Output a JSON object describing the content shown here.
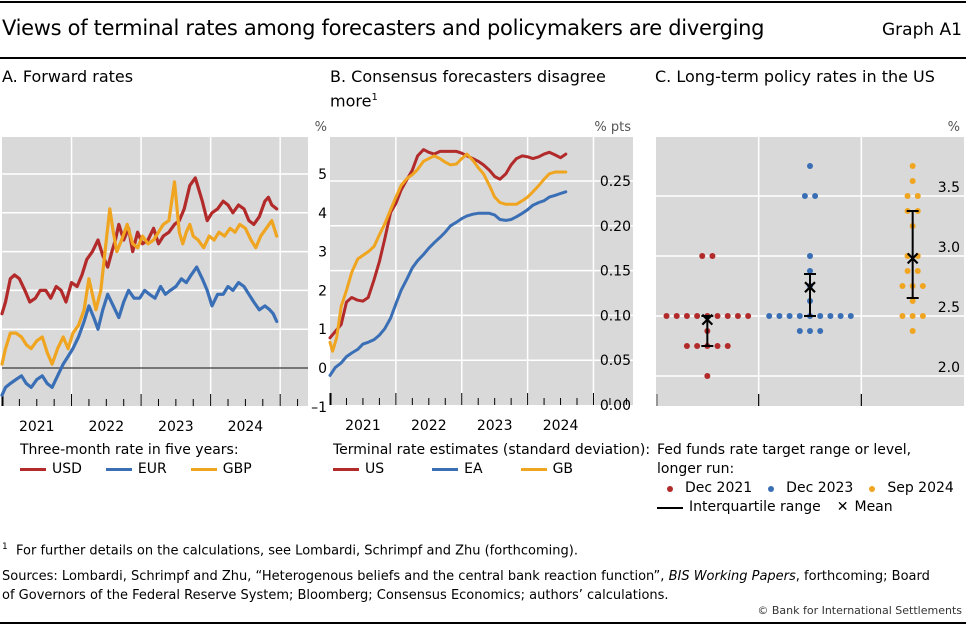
{
  "header": {
    "title": "Views of terminal rates among forecasters and policymakers are diverging",
    "graph_id": "Graph A1"
  },
  "colors": {
    "red": "#b22a2a",
    "blue": "#3a6fb5",
    "orange": "#f0a520",
    "plot_bg": "#d9d9d9",
    "grid": "#ffffff",
    "zero_line": "#555555"
  },
  "panels": {
    "a": {
      "title": "A. Forward rates",
      "unit": "%",
      "legend_title": "Three-month rate in five years:",
      "legend": [
        "USD",
        "EUR",
        "GBP"
      ]
    },
    "b": {
      "title_line1": "B. Consensus forecasters disagree",
      "title_line2": "more",
      "title_sup": "1",
      "unit": "% pts",
      "legend_title": "Terminal rate estimates (standard deviation):",
      "legend": [
        "US",
        "EA",
        "GB"
      ]
    },
    "c": {
      "title": "C. Long-term policy rates in the US",
      "unit": "%",
      "legend_title_line1": "Fed funds rate target range or level,",
      "legend_title_line2": "longer run:",
      "legend": [
        "Dec 2021",
        "Dec 2023",
        "Sep 2024"
      ],
      "legend_iqr": "Interquartile range",
      "legend_mean": "Mean",
      "mean_symbol": "✕"
    }
  },
  "footnotes": {
    "note_marker": "1",
    "note": "For further details on the calculations, see Lombardi, Schrimpf and Zhu (forthcoming).",
    "sources_pre": "Sources: Lombardi, Schrimpf and Zhu, “Heterogenous beliefs and the central bank reaction function”, ",
    "sources_italic": "BIS Working Papers",
    "sources_post": ", forthcoming; Board",
    "sources_line2": "of Governors of the Federal Reserve System; Bloomberg; Consensus Economics; authors’ calculations.",
    "copyright": "© Bank for International Settlements"
  },
  "chart_data": [
    {
      "id": "a",
      "type": "line",
      "title": "A. Forward rates",
      "xlabel": "",
      "ylabel": "%",
      "xlim": [
        2021.0,
        2025.4
      ],
      "ylim": [
        -1.0,
        6.0
      ],
      "xticks": [
        2021,
        2022,
        2023,
        2024
      ],
      "xtick_labels": [
        "2021",
        "2022",
        "2023",
        "2024"
      ],
      "yticks": [
        -1,
        0,
        1,
        2,
        3,
        4,
        5
      ],
      "ytick_labels": [
        "–1",
        "0",
        "1",
        "2",
        "3",
        "4",
        "5"
      ],
      "grid": true,
      "legend_position": "bottom",
      "series": [
        {
          "name": "USD",
          "color": "#b22a2a",
          "x": [
            2021.0,
            2021.05,
            2021.12,
            2021.18,
            2021.25,
            2021.33,
            2021.4,
            2021.48,
            2021.55,
            2021.63,
            2021.7,
            2021.78,
            2021.85,
            2021.92,
            2022.0,
            2022.08,
            2022.15,
            2022.22,
            2022.3,
            2022.38,
            2022.45,
            2022.52,
            2022.58,
            2022.63,
            2022.68,
            2022.75,
            2022.82,
            2022.88,
            2022.95,
            2023.02,
            2023.1,
            2023.18,
            2023.25,
            2023.32,
            2023.4,
            2023.48,
            2023.55,
            2023.62,
            2023.7,
            2023.78,
            2023.83,
            2023.88,
            2023.95,
            2024.02,
            2024.1,
            2024.18,
            2024.25,
            2024.32,
            2024.4,
            2024.48,
            2024.55,
            2024.62,
            2024.7,
            2024.78,
            2024.83,
            2024.88,
            2024.95
          ],
          "values": [
            1.4,
            1.7,
            2.3,
            2.4,
            2.3,
            2.0,
            1.7,
            1.8,
            2.0,
            2.0,
            1.8,
            2.1,
            2.0,
            1.7,
            2.2,
            2.1,
            2.4,
            2.8,
            3.0,
            3.3,
            2.9,
            2.6,
            3.0,
            3.3,
            3.7,
            3.3,
            3.6,
            3.0,
            3.5,
            3.2,
            3.3,
            3.6,
            3.2,
            3.4,
            3.5,
            3.7,
            3.8,
            4.1,
            4.7,
            4.9,
            4.6,
            4.3,
            3.8,
            4.0,
            4.1,
            4.3,
            4.2,
            4.0,
            4.2,
            4.1,
            3.8,
            3.7,
            3.9,
            4.3,
            4.4,
            4.2,
            4.1
          ]
        },
        {
          "name": "EUR",
          "color": "#3a6fb5",
          "x": [
            2021.0,
            2021.05,
            2021.12,
            2021.2,
            2021.28,
            2021.35,
            2021.42,
            2021.5,
            2021.58,
            2021.65,
            2021.72,
            2021.8,
            2021.88,
            2021.95,
            2022.02,
            2022.1,
            2022.18,
            2022.25,
            2022.32,
            2022.38,
            2022.45,
            2022.52,
            2022.6,
            2022.68,
            2022.75,
            2022.82,
            2022.9,
            2022.98,
            2023.05,
            2023.12,
            2023.2,
            2023.28,
            2023.35,
            2023.42,
            2023.5,
            2023.58,
            2023.65,
            2023.72,
            2023.8,
            2023.88,
            2023.95,
            2024.02,
            2024.1,
            2024.18,
            2024.25,
            2024.32,
            2024.4,
            2024.48,
            2024.55,
            2024.62,
            2024.7,
            2024.78,
            2024.85,
            2024.9,
            2024.95
          ],
          "values": [
            -0.7,
            -0.5,
            -0.4,
            -0.3,
            -0.2,
            -0.4,
            -0.5,
            -0.3,
            -0.2,
            -0.4,
            -0.5,
            -0.2,
            0.1,
            0.3,
            0.5,
            0.8,
            1.2,
            1.6,
            1.3,
            1.0,
            1.5,
            1.9,
            1.6,
            1.3,
            1.7,
            2.0,
            1.8,
            1.8,
            2.0,
            1.9,
            1.8,
            2.1,
            1.9,
            2.0,
            2.1,
            2.3,
            2.2,
            2.4,
            2.6,
            2.3,
            2.0,
            1.6,
            1.9,
            1.9,
            2.1,
            2.0,
            2.2,
            2.1,
            1.9,
            1.7,
            1.5,
            1.6,
            1.5,
            1.4,
            1.2
          ]
        },
        {
          "name": "GBP",
          "color": "#f0a520",
          "x": [
            2021.0,
            2021.05,
            2021.12,
            2021.2,
            2021.28,
            2021.35,
            2021.42,
            2021.5,
            2021.58,
            2021.65,
            2021.72,
            2021.8,
            2021.88,
            2021.95,
            2022.02,
            2022.1,
            2022.18,
            2022.25,
            2022.3,
            2022.35,
            2022.42,
            2022.5,
            2022.55,
            2022.6,
            2022.65,
            2022.72,
            2022.8,
            2022.88,
            2022.95,
            2023.02,
            2023.1,
            2023.18,
            2023.25,
            2023.32,
            2023.4,
            2023.48,
            2023.55,
            2023.6,
            2023.65,
            2023.7,
            2023.75,
            2023.82,
            2023.9,
            2023.98,
            2024.05,
            2024.12,
            2024.2,
            2024.28,
            2024.35,
            2024.42,
            2024.5,
            2024.58,
            2024.65,
            2024.72,
            2024.8,
            2024.88,
            2024.95
          ],
          "values": [
            0.1,
            0.5,
            0.9,
            0.9,
            0.8,
            0.6,
            0.5,
            0.7,
            0.8,
            0.4,
            0.1,
            0.5,
            0.8,
            0.5,
            0.9,
            1.1,
            1.5,
            2.3,
            1.9,
            1.5,
            2.0,
            3.3,
            4.1,
            3.5,
            3.0,
            3.3,
            3.7,
            3.2,
            3.1,
            3.4,
            3.2,
            3.3,
            3.5,
            3.7,
            3.8,
            4.8,
            3.5,
            3.2,
            3.5,
            3.7,
            3.4,
            3.3,
            3.1,
            3.4,
            3.3,
            3.5,
            3.4,
            3.6,
            3.5,
            3.7,
            3.6,
            3.3,
            3.1,
            3.4,
            3.6,
            3.8,
            3.4
          ]
        }
      ]
    },
    {
      "id": "b",
      "type": "line",
      "title": "B. Consensus forecasters disagree more",
      "xlabel": "",
      "ylabel": "% pts",
      "xlim": [
        2021.0,
        2025.6
      ],
      "ylim": [
        0.0,
        0.3
      ],
      "xticks": [
        2021,
        2022,
        2023,
        2024
      ],
      "xtick_labels": [
        "2021",
        "2022",
        "2023",
        "2024"
      ],
      "yticks": [
        0.0,
        0.05,
        0.1,
        0.15,
        0.2,
        0.25
      ],
      "ytick_labels": [
        "0.00",
        "0.05",
        "0.10",
        "0.15",
        "0.20",
        "0.25"
      ],
      "grid": true,
      "legend_position": "bottom",
      "series": [
        {
          "name": "US",
          "color": "#b22a2a",
          "x": [
            2021.0,
            2021.08,
            2021.17,
            2021.25,
            2021.33,
            2021.42,
            2021.5,
            2021.58,
            2021.67,
            2021.75,
            2021.83,
            2021.92,
            2022.0,
            2022.08,
            2022.17,
            2022.25,
            2022.33,
            2022.42,
            2022.5,
            2022.58,
            2022.67,
            2022.75,
            2022.83,
            2022.92,
            2023.0,
            2023.08,
            2023.17,
            2023.25,
            2023.33,
            2023.42,
            2023.5,
            2023.58,
            2023.67,
            2023.75,
            2023.83,
            2023.92,
            2024.0,
            2024.08,
            2024.17,
            2024.25,
            2024.33,
            2024.42,
            2024.5,
            2024.58
          ],
          "values": [
            0.075,
            0.082,
            0.09,
            0.115,
            0.12,
            0.117,
            0.116,
            0.12,
            0.14,
            0.16,
            0.185,
            0.215,
            0.225,
            0.24,
            0.252,
            0.262,
            0.278,
            0.285,
            0.282,
            0.28,
            0.283,
            0.283,
            0.283,
            0.283,
            0.281,
            0.278,
            0.275,
            0.272,
            0.268,
            0.262,
            0.255,
            0.252,
            0.258,
            0.268,
            0.275,
            0.278,
            0.277,
            0.275,
            0.277,
            0.28,
            0.282,
            0.279,
            0.276,
            0.28
          ]
        },
        {
          "name": "EA",
          "color": "#3a6fb5",
          "x": [
            2021.0,
            2021.08,
            2021.17,
            2021.25,
            2021.33,
            2021.42,
            2021.5,
            2021.58,
            2021.67,
            2021.75,
            2021.83,
            2021.92,
            2022.0,
            2022.08,
            2022.17,
            2022.25,
            2022.33,
            2022.42,
            2022.5,
            2022.58,
            2022.67,
            2022.75,
            2022.83,
            2022.92,
            2023.0,
            2023.08,
            2023.17,
            2023.25,
            2023.33,
            2023.42,
            2023.5,
            2023.58,
            2023.67,
            2023.75,
            2023.83,
            2023.92,
            2024.0,
            2024.08,
            2024.17,
            2024.25,
            2024.33,
            2024.42,
            2024.5,
            2024.58
          ],
          "values": [
            0.033,
            0.042,
            0.047,
            0.054,
            0.058,
            0.062,
            0.068,
            0.07,
            0.073,
            0.078,
            0.085,
            0.097,
            0.113,
            0.128,
            0.141,
            0.153,
            0.161,
            0.168,
            0.175,
            0.181,
            0.187,
            0.193,
            0.2,
            0.204,
            0.208,
            0.211,
            0.213,
            0.214,
            0.214,
            0.214,
            0.212,
            0.207,
            0.206,
            0.207,
            0.21,
            0.214,
            0.218,
            0.223,
            0.226,
            0.228,
            0.232,
            0.234,
            0.236,
            0.238
          ]
        },
        {
          "name": "GB",
          "color": "#f0a520",
          "x": [
            2021.0,
            2021.04,
            2021.1,
            2021.17,
            2021.25,
            2021.33,
            2021.42,
            2021.5,
            2021.58,
            2021.67,
            2021.75,
            2021.83,
            2021.92,
            2022.0,
            2022.08,
            2022.17,
            2022.25,
            2022.33,
            2022.42,
            2022.5,
            2022.58,
            2022.67,
            2022.75,
            2022.83,
            2022.92,
            2023.0,
            2023.08,
            2023.17,
            2023.25,
            2023.33,
            2023.42,
            2023.5,
            2023.58,
            2023.67,
            2023.75,
            2023.83,
            2023.92,
            2024.0,
            2024.08,
            2024.17,
            2024.25,
            2024.33,
            2024.42,
            2024.5,
            2024.58
          ],
          "values": [
            0.07,
            0.06,
            0.075,
            0.11,
            0.128,
            0.148,
            0.163,
            0.167,
            0.171,
            0.177,
            0.19,
            0.202,
            0.218,
            0.232,
            0.245,
            0.253,
            0.257,
            0.263,
            0.272,
            0.275,
            0.278,
            0.275,
            0.271,
            0.268,
            0.269,
            0.275,
            0.28,
            0.273,
            0.265,
            0.258,
            0.245,
            0.232,
            0.226,
            0.224,
            0.224,
            0.224,
            0.228,
            0.232,
            0.238,
            0.245,
            0.252,
            0.258,
            0.26,
            0.26,
            0.26
          ]
        }
      ]
    },
    {
      "id": "c",
      "type": "scatter",
      "title": "C. Long-term policy rates in the US",
      "xlabel": "",
      "ylabel": "%",
      "ylim": [
        1.85,
        3.95
      ],
      "yticks": [
        2.0,
        2.5,
        3.0,
        3.5
      ],
      "ytick_labels": [
        "2.0",
        "2.5",
        "3.0",
        "3.5"
      ],
      "grid": true,
      "legend_position": "bottom",
      "groups": [
        {
          "name": "Dec 2021",
          "color": "#b22a2a",
          "dots": [
            {
              "value": 3.0,
              "count": 2
            },
            {
              "value": 2.5,
              "count": 9
            },
            {
              "value": 2.375,
              "count": 1
            },
            {
              "value": 2.25,
              "count": 5
            },
            {
              "value": 2.0,
              "count": 1
            }
          ],
          "iqr": [
            2.25,
            2.5
          ],
          "mean": 2.47
        },
        {
          "name": "Dec 2023",
          "color": "#3a6fb5",
          "dots": [
            {
              "value": 3.75,
              "count": 1
            },
            {
              "value": 3.5,
              "count": 2
            },
            {
              "value": 3.0,
              "count": 1
            },
            {
              "value": 2.875,
              "count": 1
            },
            {
              "value": 2.75,
              "count": 1
            },
            {
              "value": 2.625,
              "count": 1
            },
            {
              "value": 2.5,
              "count": 9
            },
            {
              "value": 2.375,
              "count": 3
            }
          ],
          "iqr": [
            2.5,
            2.85
          ],
          "mean": 2.74
        },
        {
          "name": "Sep 2024",
          "color": "#f0a520",
          "dots": [
            {
              "value": 3.75,
              "count": 1
            },
            {
              "value": 3.625,
              "count": 1
            },
            {
              "value": 3.5,
              "count": 2
            },
            {
              "value": 3.375,
              "count": 2
            },
            {
              "value": 3.25,
              "count": 1
            },
            {
              "value": 3.0,
              "count": 2
            },
            {
              "value": 2.875,
              "count": 2
            },
            {
              "value": 2.75,
              "count": 3
            },
            {
              "value": 2.625,
              "count": 1
            },
            {
              "value": 2.5,
              "count": 3
            },
            {
              "value": 2.375,
              "count": 1
            }
          ],
          "iqr": [
            2.65,
            3.375
          ],
          "mean": 2.98
        }
      ]
    }
  ]
}
